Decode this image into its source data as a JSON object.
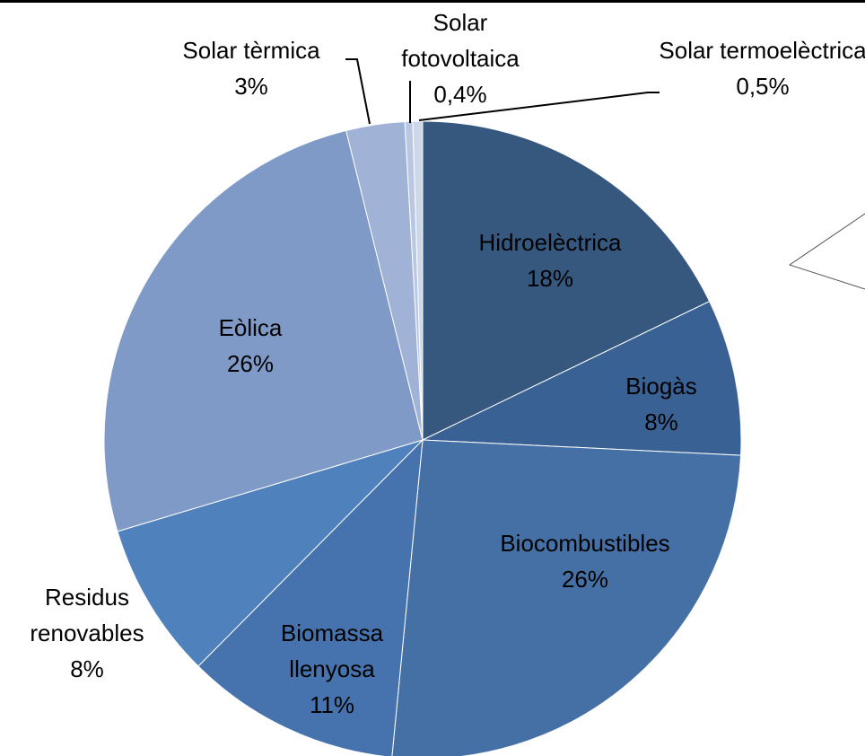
{
  "chart_data": {
    "type": "pie",
    "categories": [
      "Hidroelèctrica",
      "Biogàs",
      "Biocombustibles",
      "Biomassa llenyosa",
      "Residus renovables",
      "Eòlica",
      "Solar tèrmica",
      "Solar fotovoltaica",
      "Solar termoelèctrica"
    ],
    "values": [
      18,
      8,
      26,
      11,
      8,
      26,
      3,
      0.4,
      0.5
    ],
    "value_labels": [
      "18%",
      "8%",
      "26%",
      "11%",
      "8%",
      "26%",
      "3%",
      "0,4%",
      "0,5%"
    ],
    "colors": [
      "#36587f",
      "#3a6193",
      "#4470a6",
      "#4673ad",
      "#4f81bd",
      "#7f9ac6",
      "#a0b2d6",
      "#b9c7e2",
      "#cdd7ea"
    ]
  }
}
